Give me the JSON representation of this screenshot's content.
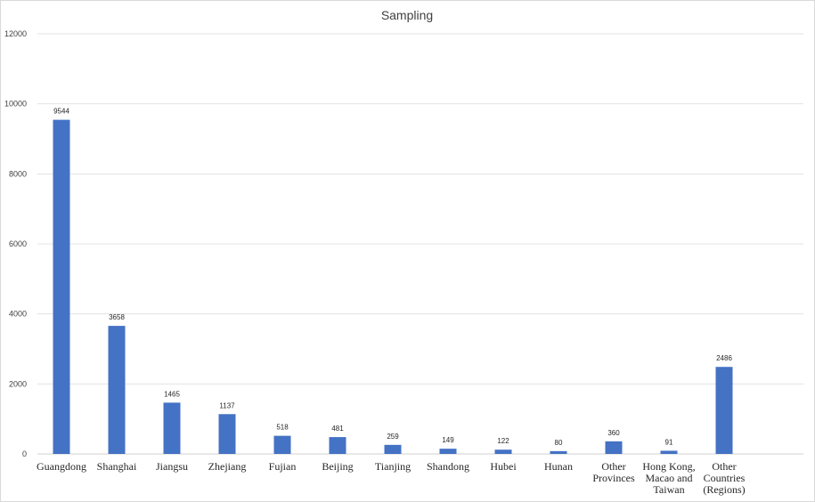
{
  "chart_data": {
    "type": "bar",
    "title": "Sampling",
    "categories": [
      [
        "Guangdong"
      ],
      [
        "Shanghai"
      ],
      [
        "Jiangsu"
      ],
      [
        "Zhejiang"
      ],
      [
        "Fujian"
      ],
      [
        "Beijing"
      ],
      [
        "Tianjing"
      ],
      [
        "Shandong"
      ],
      [
        "Hubei"
      ],
      [
        "Hunan"
      ],
      [
        "Other",
        "Provinces"
      ],
      [
        "Hong Kong,",
        "Macao and",
        "Taiwan"
      ],
      [
        "Other",
        "Countries",
        "(Regions)"
      ]
    ],
    "values": [
      9544,
      3658,
      1465,
      1137,
      518,
      481,
      259,
      149,
      122,
      80,
      360,
      91,
      2486
    ],
    "data_labels": [
      "9544",
      "3658",
      "1465",
      "1137",
      "518",
      "481",
      "259",
      "149",
      "122",
      "80",
      "360",
      "91",
      "2486"
    ],
    "yticks": [
      "0",
      "2000",
      "4000",
      "6000",
      "8000",
      "10000",
      "12000"
    ],
    "ylim": [
      0,
      12000
    ],
    "grid": true,
    "legend": "none",
    "bar_color": "#4472C4"
  }
}
